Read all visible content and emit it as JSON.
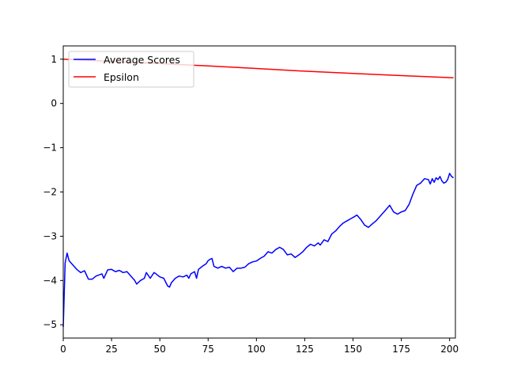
{
  "chart_data": {
    "type": "line",
    "title": "",
    "xlabel": "",
    "ylabel": "",
    "xlim": [
      0,
      203
    ],
    "ylim": [
      -5.3,
      1.3
    ],
    "x_ticks": [
      0,
      25,
      50,
      75,
      100,
      125,
      150,
      175,
      200
    ],
    "y_ticks": [
      1,
      0,
      -1,
      -2,
      -3,
      -4,
      -5
    ],
    "x_tick_labels": [
      "0",
      "25",
      "50",
      "75",
      "100",
      "125",
      "150",
      "175",
      "200"
    ],
    "y_tick_labels": [
      "1",
      "0",
      "−1",
      "−2",
      "−3",
      "−4",
      "−5"
    ],
    "grid": false,
    "legend_position": "top-left",
    "series": [
      {
        "name": "Average Scores",
        "color": "#0000ff",
        "points": [
          [
            0,
            -5.05
          ],
          [
            1,
            -3.6
          ],
          [
            2,
            -3.38
          ],
          [
            3,
            -3.55
          ],
          [
            5,
            -3.65
          ],
          [
            7,
            -3.75
          ],
          [
            9,
            -3.82
          ],
          [
            11,
            -3.78
          ],
          [
            13,
            -3.97
          ],
          [
            15,
            -3.97
          ],
          [
            17,
            -3.9
          ],
          [
            20,
            -3.85
          ],
          [
            21,
            -3.95
          ],
          [
            23,
            -3.76
          ],
          [
            25,
            -3.75
          ],
          [
            27,
            -3.8
          ],
          [
            29,
            -3.77
          ],
          [
            31,
            -3.82
          ],
          [
            33,
            -3.8
          ],
          [
            35,
            -3.9
          ],
          [
            37,
            -4.0
          ],
          [
            38,
            -4.08
          ],
          [
            40,
            -4.0
          ],
          [
            42,
            -3.95
          ],
          [
            43,
            -3.82
          ],
          [
            45,
            -3.95
          ],
          [
            47,
            -3.82
          ],
          [
            48,
            -3.85
          ],
          [
            50,
            -3.92
          ],
          [
            52,
            -3.95
          ],
          [
            54,
            -4.12
          ],
          [
            55,
            -4.15
          ],
          [
            56,
            -4.05
          ],
          [
            58,
            -3.95
          ],
          [
            60,
            -3.9
          ],
          [
            62,
            -3.92
          ],
          [
            64,
            -3.88
          ],
          [
            65,
            -3.95
          ],
          [
            66,
            -3.85
          ],
          [
            68,
            -3.8
          ],
          [
            69,
            -3.95
          ],
          [
            70,
            -3.75
          ],
          [
            72,
            -3.68
          ],
          [
            74,
            -3.62
          ],
          [
            75,
            -3.55
          ],
          [
            76,
            -3.52
          ],
          [
            77,
            -3.5
          ],
          [
            78,
            -3.68
          ],
          [
            80,
            -3.72
          ],
          [
            82,
            -3.68
          ],
          [
            84,
            -3.72
          ],
          [
            86,
            -3.7
          ],
          [
            88,
            -3.8
          ],
          [
            90,
            -3.72
          ],
          [
            92,
            -3.72
          ],
          [
            94,
            -3.7
          ],
          [
            96,
            -3.62
          ],
          [
            98,
            -3.58
          ],
          [
            100,
            -3.56
          ],
          [
            102,
            -3.5
          ],
          [
            104,
            -3.45
          ],
          [
            106,
            -3.35
          ],
          [
            108,
            -3.38
          ],
          [
            110,
            -3.3
          ],
          [
            112,
            -3.25
          ],
          [
            114,
            -3.3
          ],
          [
            116,
            -3.42
          ],
          [
            118,
            -3.4
          ],
          [
            120,
            -3.48
          ],
          [
            122,
            -3.42
          ],
          [
            124,
            -3.35
          ],
          [
            126,
            -3.25
          ],
          [
            128,
            -3.18
          ],
          [
            130,
            -3.22
          ],
          [
            132,
            -3.15
          ],
          [
            133,
            -3.2
          ],
          [
            135,
            -3.08
          ],
          [
            137,
            -3.12
          ],
          [
            139,
            -2.95
          ],
          [
            141,
            -2.88
          ],
          [
            143,
            -2.78
          ],
          [
            145,
            -2.7
          ],
          [
            147,
            -2.65
          ],
          [
            149,
            -2.6
          ],
          [
            151,
            -2.55
          ],
          [
            152,
            -2.52
          ],
          [
            154,
            -2.62
          ],
          [
            156,
            -2.75
          ],
          [
            158,
            -2.8
          ],
          [
            160,
            -2.72
          ],
          [
            162,
            -2.65
          ],
          [
            164,
            -2.55
          ],
          [
            166,
            -2.45
          ],
          [
            168,
            -2.35
          ],
          [
            169,
            -2.3
          ],
          [
            171,
            -2.45
          ],
          [
            173,
            -2.5
          ],
          [
            175,
            -2.45
          ],
          [
            177,
            -2.42
          ],
          [
            179,
            -2.28
          ],
          [
            181,
            -2.05
          ],
          [
            183,
            -1.85
          ],
          [
            185,
            -1.8
          ],
          [
            187,
            -1.7
          ],
          [
            189,
            -1.72
          ],
          [
            190,
            -1.82
          ],
          [
            191,
            -1.7
          ],
          [
            192,
            -1.78
          ],
          [
            193,
            -1.68
          ],
          [
            194,
            -1.72
          ],
          [
            195,
            -1.65
          ],
          [
            196,
            -1.75
          ],
          [
            197,
            -1.8
          ],
          [
            198,
            -1.78
          ],
          [
            199,
            -1.72
          ],
          [
            200,
            -1.58
          ],
          [
            201,
            -1.65
          ],
          [
            202,
            -1.68
          ]
        ]
      },
      {
        "name": "Epsilon",
        "color": "#ff0000",
        "points": [
          [
            0,
            1.0
          ],
          [
            25,
            0.95
          ],
          [
            50,
            0.9
          ],
          [
            75,
            0.85
          ],
          [
            100,
            0.79
          ],
          [
            125,
            0.73
          ],
          [
            150,
            0.68
          ],
          [
            175,
            0.63
          ],
          [
            202,
            0.58
          ]
        ]
      }
    ]
  }
}
